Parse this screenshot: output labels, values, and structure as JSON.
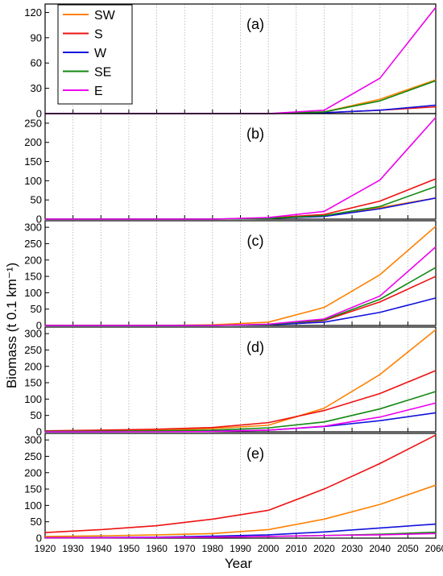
{
  "figure": {
    "ylabel": "Biomass (t 0.1 km⁻¹)",
    "xlabel": "Year",
    "x_ticks": [
      1920,
      1930,
      1940,
      1950,
      1960,
      1970,
      1980,
      1990,
      2000,
      2010,
      2020,
      2030,
      2040,
      2050,
      2060
    ],
    "legend": [
      {
        "name": "SW",
        "color": "#ff8000"
      },
      {
        "name": "S",
        "color": "#ee1111"
      },
      {
        "name": "W",
        "color": "#1111dd"
      },
      {
        "name": "SE",
        "color": "#118811"
      },
      {
        "name": "E",
        "color": "#ee00ee"
      }
    ]
  },
  "chart_data": [
    {
      "type": "line",
      "label": "(a)",
      "ylim": [
        0,
        130
      ],
      "yticks": [
        0,
        30,
        60,
        90,
        120
      ],
      "x": [
        1920,
        1940,
        1960,
        1980,
        2000,
        2020,
        2040,
        2060
      ],
      "series": [
        {
          "name": "SW",
          "values": [
            0,
            0,
            0,
            0,
            0,
            2,
            17,
            40
          ]
        },
        {
          "name": "S",
          "values": [
            0,
            0,
            0,
            0,
            0,
            1,
            4,
            8
          ]
        },
        {
          "name": "W",
          "values": [
            0,
            0,
            0,
            0,
            0,
            1,
            4,
            10
          ]
        },
        {
          "name": "SE",
          "values": [
            0,
            0,
            0,
            0,
            0,
            2,
            15,
            39
          ]
        },
        {
          "name": "E",
          "values": [
            0,
            0,
            0,
            0,
            0,
            4,
            42,
            126
          ]
        }
      ]
    },
    {
      "type": "line",
      "label": "(b)",
      "ylim": [
        0,
        275
      ],
      "yticks": [
        0,
        50,
        100,
        150,
        200,
        250
      ],
      "x": [
        1920,
        1940,
        1960,
        1980,
        2000,
        2020,
        2040,
        2060
      ],
      "series": [
        {
          "name": "SW",
          "values": [
            0,
            0,
            0,
            0,
            2,
            8,
            30,
            55
          ]
        },
        {
          "name": "S",
          "values": [
            0,
            0,
            0,
            0,
            3,
            12,
            47,
            105
          ]
        },
        {
          "name": "W",
          "values": [
            0,
            0,
            0,
            0,
            2,
            7,
            27,
            55
          ]
        },
        {
          "name": "SE",
          "values": [
            0,
            0,
            0,
            0,
            2,
            9,
            33,
            85
          ]
        },
        {
          "name": "E",
          "values": [
            0,
            0,
            0,
            0,
            4,
            20,
            102,
            265
          ]
        }
      ]
    },
    {
      "type": "line",
      "label": "(c)",
      "ylim": [
        0,
        320
      ],
      "yticks": [
        0,
        50,
        100,
        150,
        200,
        250,
        300
      ],
      "x": [
        1920,
        1940,
        1960,
        1980,
        2000,
        2020,
        2040,
        2060
      ],
      "series": [
        {
          "name": "SW",
          "values": [
            0,
            0,
            0,
            2,
            10,
            55,
            155,
            303
          ]
        },
        {
          "name": "S",
          "values": [
            0,
            0,
            0,
            0,
            3,
            15,
            72,
            150
          ]
        },
        {
          "name": "W",
          "values": [
            0,
            0,
            0,
            0,
            2,
            10,
            40,
            84
          ]
        },
        {
          "name": "SE",
          "values": [
            0,
            0,
            0,
            0,
            3,
            17,
            80,
            177
          ]
        },
        {
          "name": "E",
          "values": [
            0,
            0,
            0,
            0,
            4,
            20,
            90,
            240
          ]
        }
      ]
    },
    {
      "type": "line",
      "label": "(d)",
      "ylim": [
        0,
        320
      ],
      "yticks": [
        0,
        50,
        100,
        150,
        200,
        250,
        300
      ],
      "x": [
        1920,
        1940,
        1960,
        1980,
        2000,
        2020,
        2040,
        2060
      ],
      "series": [
        {
          "name": "SW",
          "values": [
            2,
            3,
            5,
            10,
            20,
            72,
            175,
            312
          ]
        },
        {
          "name": "S",
          "values": [
            3,
            5,
            8,
            13,
            28,
            65,
            117,
            187
          ]
        },
        {
          "name": "W",
          "values": [
            0,
            0,
            1,
            2,
            5,
            16,
            34,
            58
          ]
        },
        {
          "name": "SE",
          "values": [
            1,
            2,
            3,
            5,
            12,
            30,
            70,
            123
          ]
        },
        {
          "name": "E",
          "values": [
            0,
            0,
            0,
            1,
            5,
            17,
            45,
            88
          ]
        }
      ]
    },
    {
      "type": "line",
      "label": "(e)",
      "ylim": [
        0,
        320
      ],
      "yticks": [
        0,
        50,
        100,
        150,
        200,
        250,
        300
      ],
      "x": [
        1920,
        1940,
        1960,
        1980,
        2000,
        2020,
        2040,
        2060
      ],
      "series": [
        {
          "name": "SW",
          "values": [
            5,
            7,
            10,
            14,
            26,
            58,
            103,
            162
          ]
        },
        {
          "name": "S",
          "values": [
            17,
            26,
            38,
            58,
            85,
            150,
            228,
            315
          ]
        },
        {
          "name": "W",
          "values": [
            1,
            2,
            3,
            6,
            10,
            19,
            31,
            43
          ]
        },
        {
          "name": "SE",
          "values": [
            1,
            1,
            2,
            3,
            5,
            8,
            12,
            18
          ]
        },
        {
          "name": "E",
          "values": [
            1,
            1,
            2,
            3,
            5,
            8,
            10,
            14
          ]
        }
      ]
    }
  ]
}
